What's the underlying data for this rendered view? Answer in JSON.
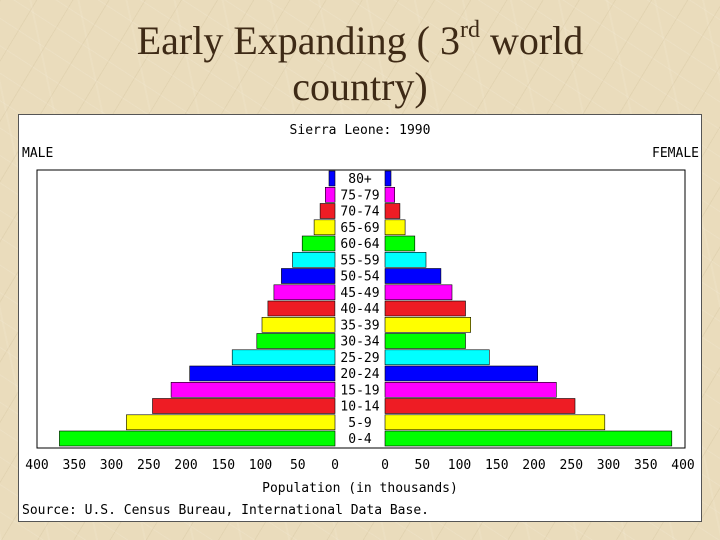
{
  "slide": {
    "title_part1": "Early Expanding ( 3",
    "title_sup": "rd",
    "title_part2": " world",
    "title_line2": "country)"
  },
  "chart_data": {
    "type": "bar",
    "title": "Sierra Leone: 1990",
    "left_label": "MALE",
    "right_label": "FEMALE",
    "xlabel": "Population (in thousands)",
    "source": "Source: U.S. Census Bureau, International Data Base.",
    "xlim": [
      0,
      400
    ],
    "x_ticks_left": [
      "400",
      "350",
      "300",
      "250",
      "200",
      "150",
      "100",
      "50",
      "0"
    ],
    "x_ticks_right": [
      "0",
      "50",
      "100",
      "150",
      "200",
      "250",
      "300",
      "350",
      "400"
    ],
    "categories": [
      "80+",
      "75-79",
      "70-74",
      "65-69",
      "60-64",
      "55-59",
      "50-54",
      "45-49",
      "40-44",
      "35-39",
      "30-34",
      "25-29",
      "20-24",
      "15-19",
      "10-14",
      "5-9",
      "0-4"
    ],
    "colors": [
      "#0000ff",
      "#ff00ff",
      "#ee1c24",
      "#ffff00",
      "#00ff00",
      "#00ffff",
      "#0000ff",
      "#ff00ff",
      "#ee1c24",
      "#ffff00",
      "#00ff00",
      "#00ffff",
      "#0000ff",
      "#ff00ff",
      "#ee1c24",
      "#ffff00",
      "#00ff00"
    ],
    "series": [
      {
        "name": "MALE",
        "values": [
          8,
          13,
          20,
          28,
          44,
          57,
          72,
          82,
          90,
          98,
          105,
          138,
          195,
          220,
          245,
          280,
          370
        ]
      },
      {
        "name": "FEMALE",
        "values": [
          8,
          13,
          20,
          27,
          40,
          55,
          75,
          90,
          108,
          115,
          108,
          140,
          205,
          230,
          255,
          295,
          385
        ]
      }
    ]
  }
}
